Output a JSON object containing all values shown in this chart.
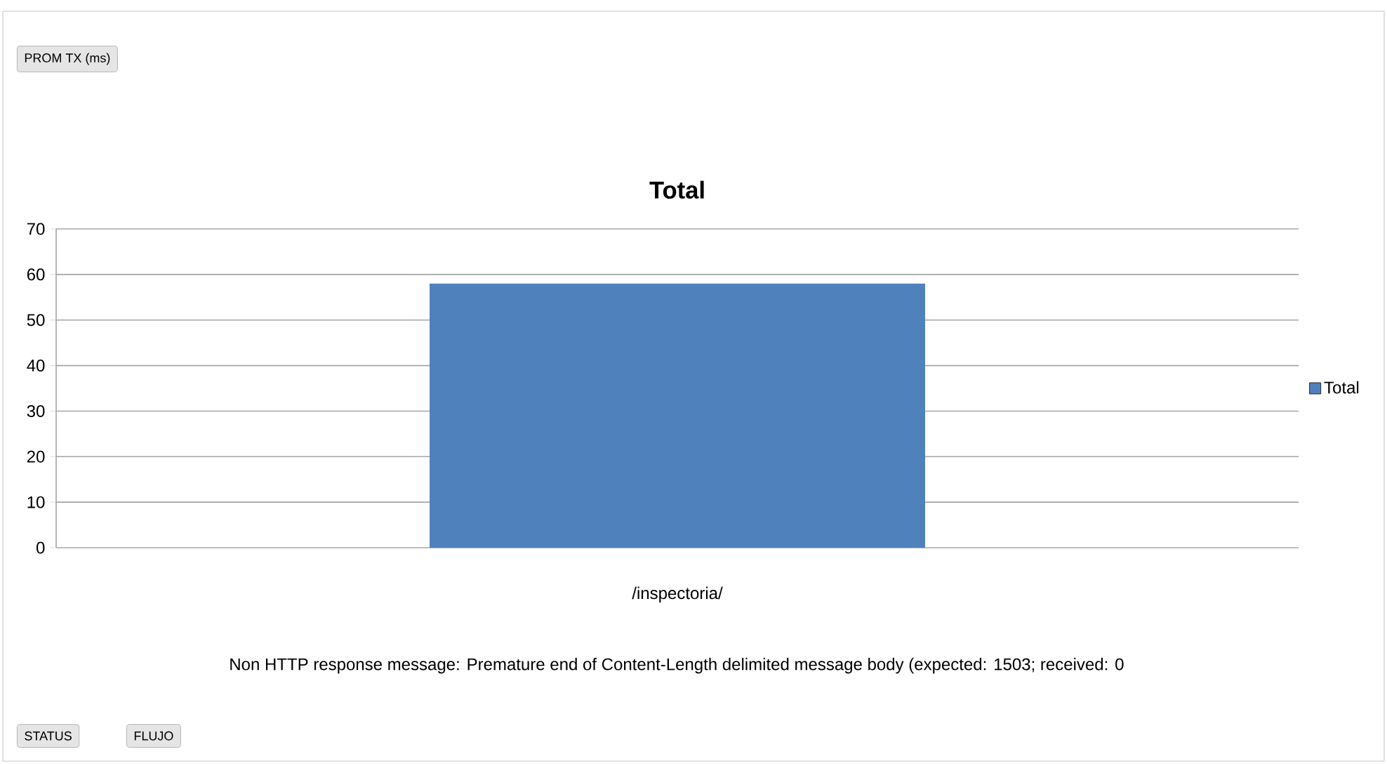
{
  "chart_data": {
    "type": "bar",
    "title": "Total",
    "categories": [
      "/inspectoria/"
    ],
    "series": [
      {
        "name": "Total",
        "color": "#4f81bd",
        "values": [
          58
        ]
      }
    ],
    "ylim": [
      0,
      70
    ],
    "yticks": [
      0,
      10,
      20,
      30,
      40,
      50,
      60,
      70
    ],
    "grid": "y",
    "legend": "right",
    "annotations": [
      "PROM TX (ms)",
      "STATUS",
      "FLUJO",
      "Non HTTP response message: Premature end of Content-Length delimited message body (expected: 1503; received: 0"
    ]
  }
}
